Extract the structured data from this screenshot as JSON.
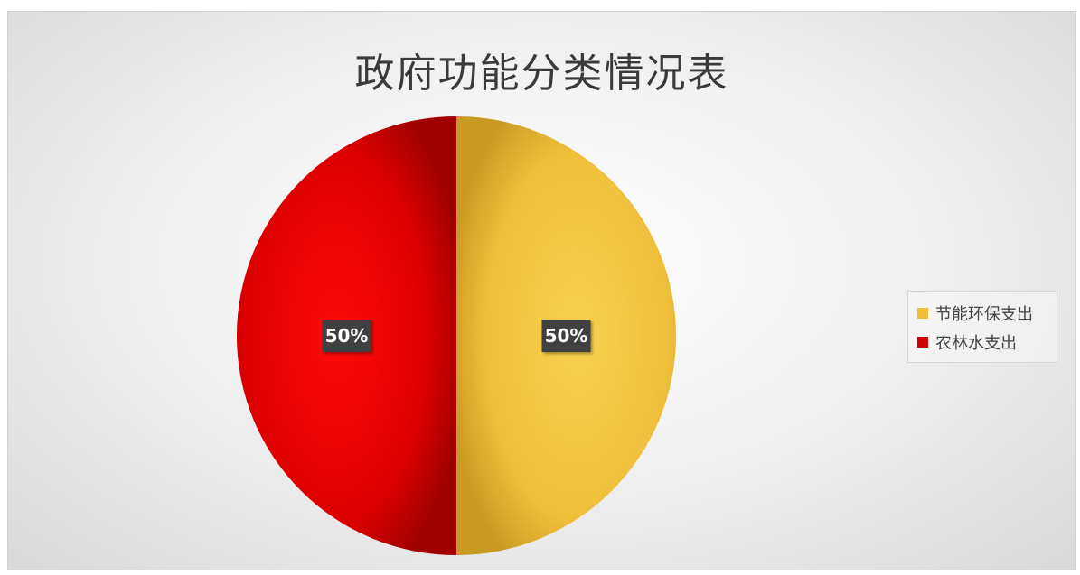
{
  "chart_data": {
    "type": "pie",
    "title": "政府功能分类情况表",
    "slices": [
      {
        "name": "节能环保支出",
        "value": 50,
        "label": "50%",
        "color": "#f2c13e"
      },
      {
        "name": "农林水支出",
        "value": 50,
        "label": "50%",
        "color": "#d90000"
      }
    ],
    "legend_position": "right"
  }
}
